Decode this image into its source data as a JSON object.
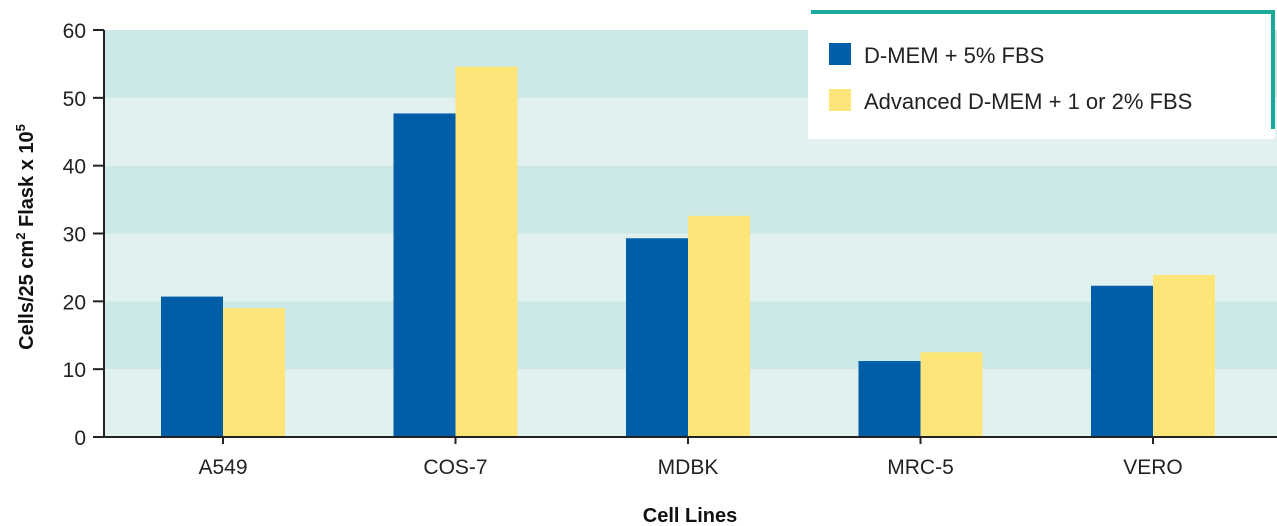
{
  "chart_data": {
    "type": "bar",
    "categories": [
      "A549",
      "COS-7",
      "MDBK",
      "MRC-5",
      "VERO"
    ],
    "series": [
      {
        "name": "D-MEM + 5% FBS",
        "values": [
          20.7,
          47.7,
          29.3,
          11.2,
          22.3
        ]
      },
      {
        "name": "Advanced D-MEM + 1 or 2% FBS",
        "values": [
          19.0,
          54.6,
          32.6,
          12.5,
          23.9
        ]
      }
    ],
    "xlabel": "Cell Lines",
    "ylabel_parts": {
      "a": "Cells/25 cm",
      "b": "2",
      "c": " Flask x 10",
      "d": "5"
    },
    "ylim": [
      0,
      60
    ],
    "yticks": [
      0,
      10,
      20,
      30,
      40,
      50,
      60
    ],
    "legend_position": "top-right",
    "colors": {
      "series": [
        "#005EA8",
        "#FDE57A"
      ],
      "band_dark": "#CBE8E6",
      "band_light": "#E1F1F0",
      "legend_accent": "#1BA99B",
      "axis": "#222222"
    }
  }
}
